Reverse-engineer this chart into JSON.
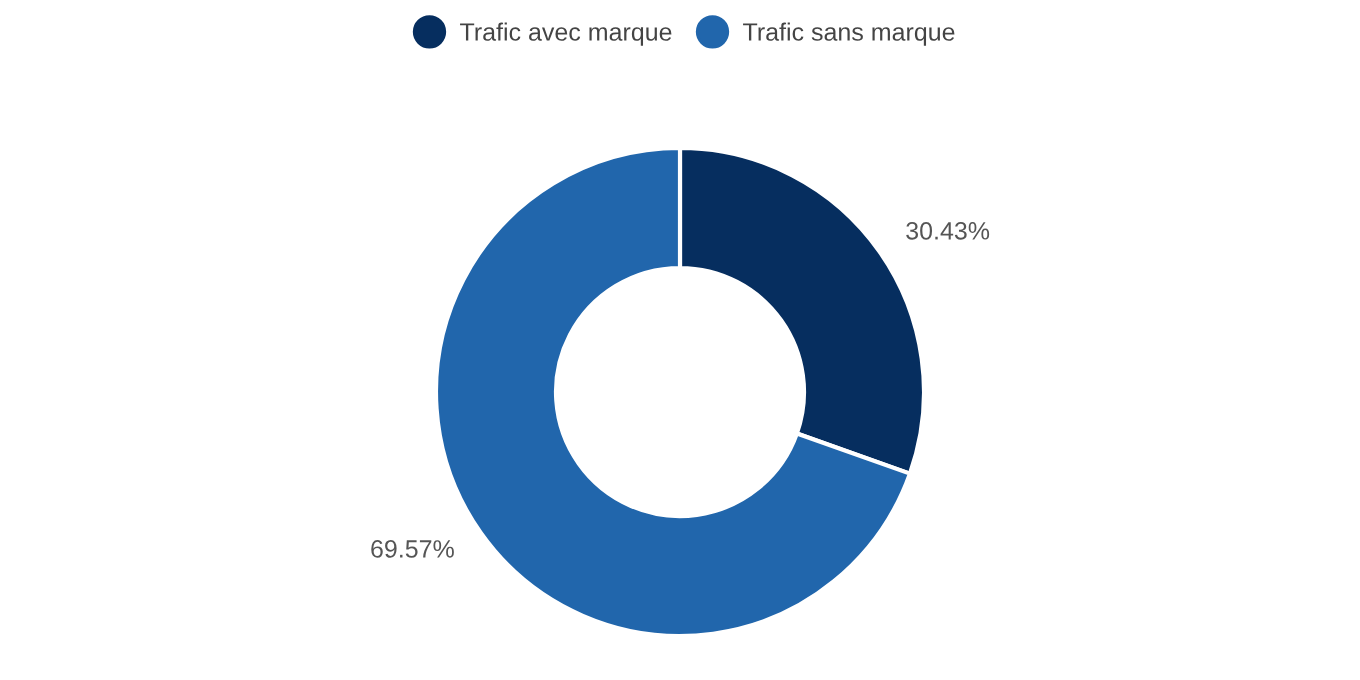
{
  "chart_data": {
    "type": "donut",
    "categories": [
      "Trafic avec marque",
      "Trafic sans marque"
    ],
    "values": [
      30.43,
      69.57
    ],
    "colors": [
      "#062e5f",
      "#2166ac"
    ],
    "value_labels": [
      "30.43%",
      "69.57%"
    ],
    "legend": "top"
  }
}
